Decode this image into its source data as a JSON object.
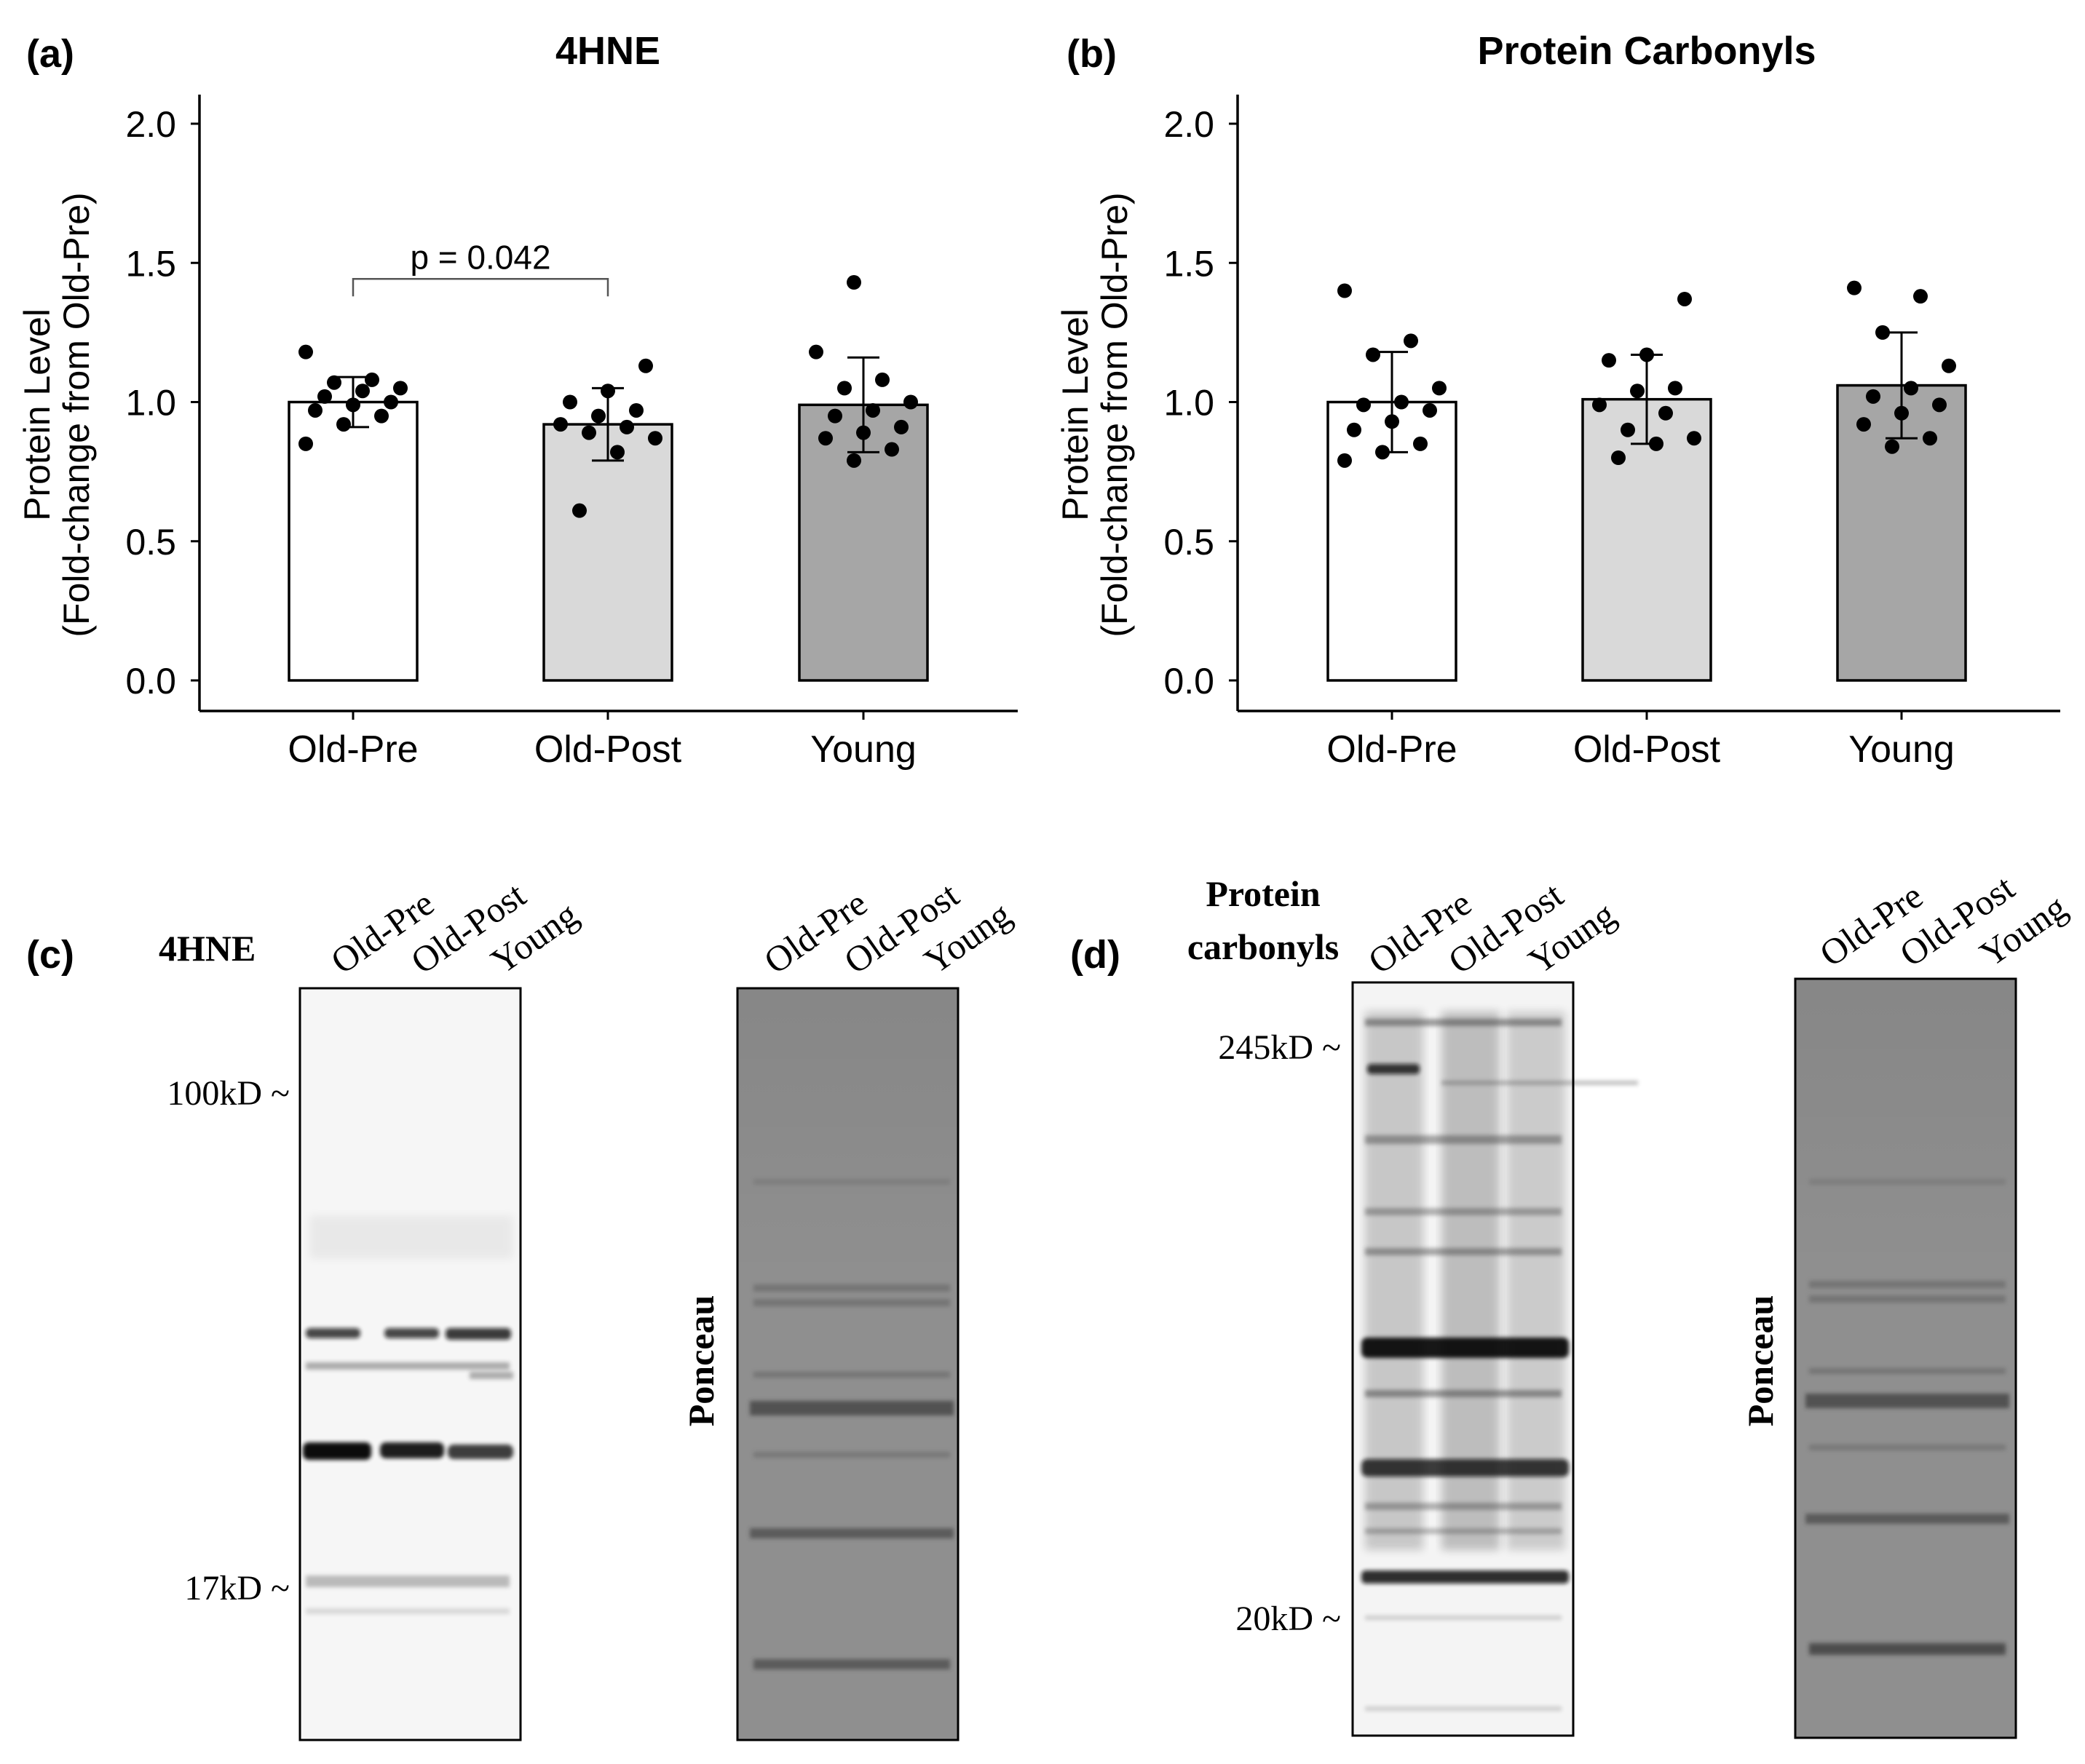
{
  "colors": {
    "old_pre": "#ffffff",
    "old_post": "#d9d9d9",
    "young": "#a6a6a6",
    "point": "#000000",
    "axis": "#000000"
  },
  "panel_a": {
    "letter": "(a)",
    "title": "4HNE"
  },
  "panel_b": {
    "letter": "(b)",
    "title": "Protein Carbonyls"
  },
  "ylabel_line1": "Protein Level",
  "ylabel_line2": "(Fold-change from Old-Pre)",
  "chart_data": [
    {
      "type": "bar",
      "title": "4HNE",
      "categories": [
        "Old-Pre",
        "Old-Post",
        "Young"
      ],
      "values": [
        1.0,
        0.92,
        0.99
      ],
      "error": [
        0.09,
        0.13,
        0.17
      ],
      "ylim": [
        0,
        2.0
      ],
      "yticks": [
        "0.0",
        "0.5",
        "1.0",
        "1.5",
        "2.0"
      ],
      "points": [
        [
          0.85,
          0.92,
          0.95,
          0.97,
          0.99,
          1.0,
          1.02,
          1.04,
          1.05,
          1.07,
          1.08,
          1.18
        ],
        [
          0.61,
          0.82,
          0.87,
          0.89,
          0.91,
          0.92,
          0.95,
          0.97,
          1.0,
          1.04,
          1.13
        ],
        [
          0.79,
          0.83,
          0.87,
          0.89,
          0.91,
          0.95,
          0.97,
          1.0,
          1.05,
          1.08,
          1.18,
          1.43
        ]
      ],
      "annotation": {
        "text": "p = 0.042",
        "from": 0,
        "to": 1,
        "y": 1.5
      }
    },
    {
      "type": "bar",
      "title": "Protein Carbonyls",
      "categories": [
        "Old-Pre",
        "Old-Post",
        "Young"
      ],
      "values": [
        1.0,
        1.01,
        1.06
      ],
      "error": [
        0.18,
        0.16,
        0.19
      ],
      "ylim": [
        0,
        2.0
      ],
      "yticks": [
        "0.0",
        "0.5",
        "1.0",
        "1.5",
        "2.0"
      ],
      "points": [
        [
          0.79,
          0.82,
          0.85,
          0.9,
          0.93,
          0.97,
          0.99,
          1.0,
          1.05,
          1.17,
          1.22,
          1.4
        ],
        [
          0.8,
          0.85,
          0.87,
          0.9,
          0.96,
          0.99,
          1.04,
          1.05,
          1.15,
          1.17,
          1.37
        ],
        [
          0.84,
          0.87,
          0.92,
          0.96,
          0.99,
          1.02,
          1.05,
          1.13,
          1.25,
          1.38,
          1.41
        ]
      ]
    }
  ],
  "blots": {
    "c": {
      "letter": "(c)",
      "label": "4HNE",
      "lanes": [
        "Old-Pre",
        "Old-Post",
        "Young"
      ],
      "markers": [
        "100kD ~",
        "17kD ~"
      ],
      "ponceau": "Ponceau"
    },
    "d": {
      "letter": "(d)",
      "label_line1": "Protein",
      "label_line2": "carbonyls",
      "lanes": [
        "Old-Pre",
        "Old-Post",
        "Young"
      ],
      "markers": [
        "245kD ~",
        "20kD ~"
      ],
      "ponceau": "Ponceau"
    }
  }
}
